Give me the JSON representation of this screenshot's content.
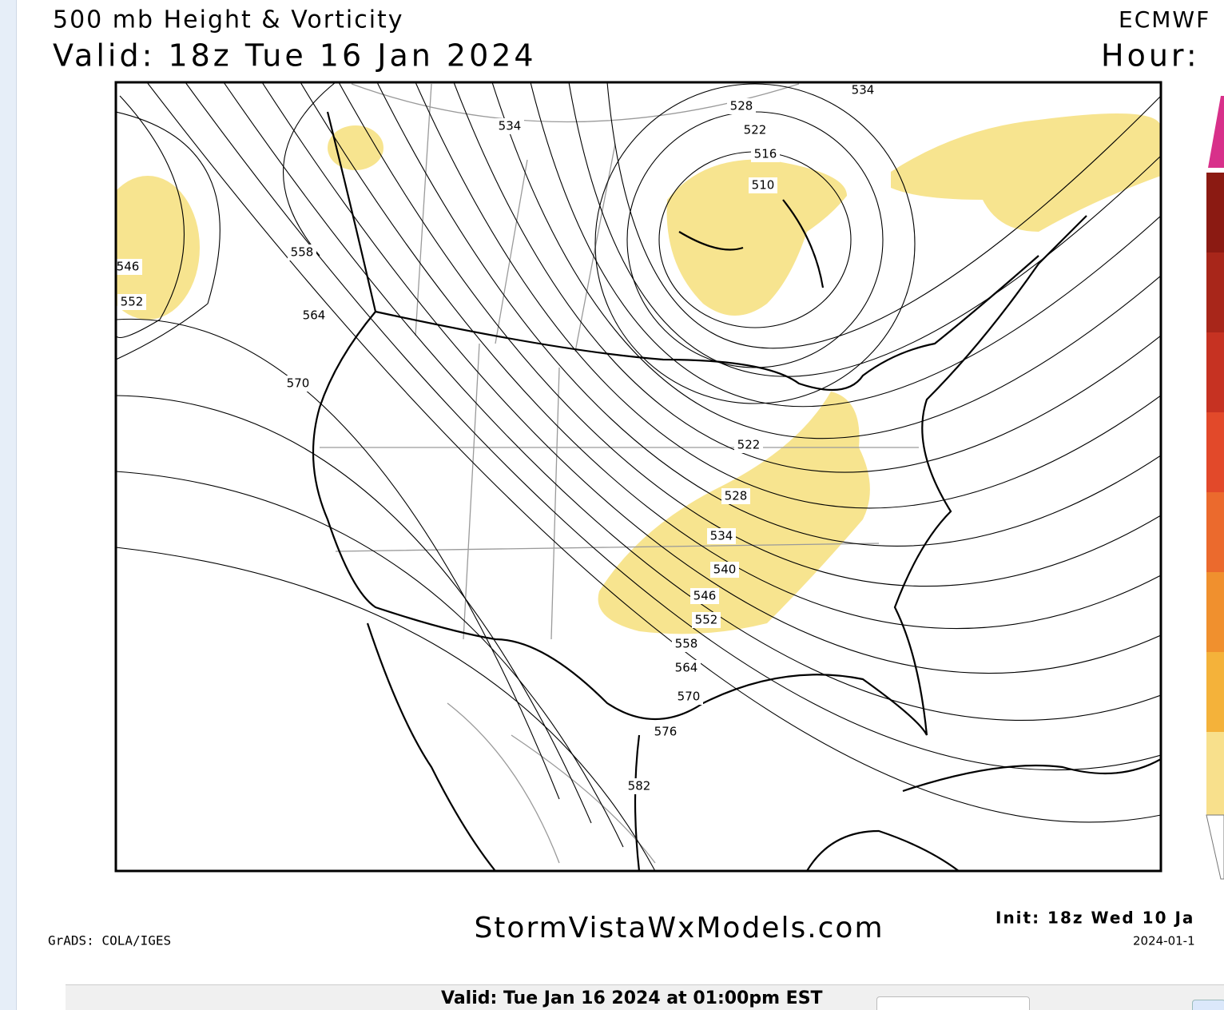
{
  "header": {
    "title": "500 mb Height & Vorticity",
    "valid": "Valid: 18z Tue 16 Jan 2024",
    "model": "ECMWF",
    "hour": "Hour:"
  },
  "contour_labels": [
    "534",
    "528",
    "522",
    "516",
    "510",
    "534",
    "558",
    "546",
    "552",
    "564",
    "570",
    "522",
    "528",
    "534",
    "540",
    "546",
    "552",
    "558",
    "564",
    "570",
    "576",
    "582"
  ],
  "footer": {
    "credit": "GrADS: COLA/IGES",
    "site": "StormVistaWxModels.com",
    "init": "Init: 18z Wed 10 Ja",
    "init_date": "2024-01-1"
  },
  "bottom_bar": {
    "valid": "Valid: Tue Jan 16 2024 at 01:00pm EST"
  }
}
